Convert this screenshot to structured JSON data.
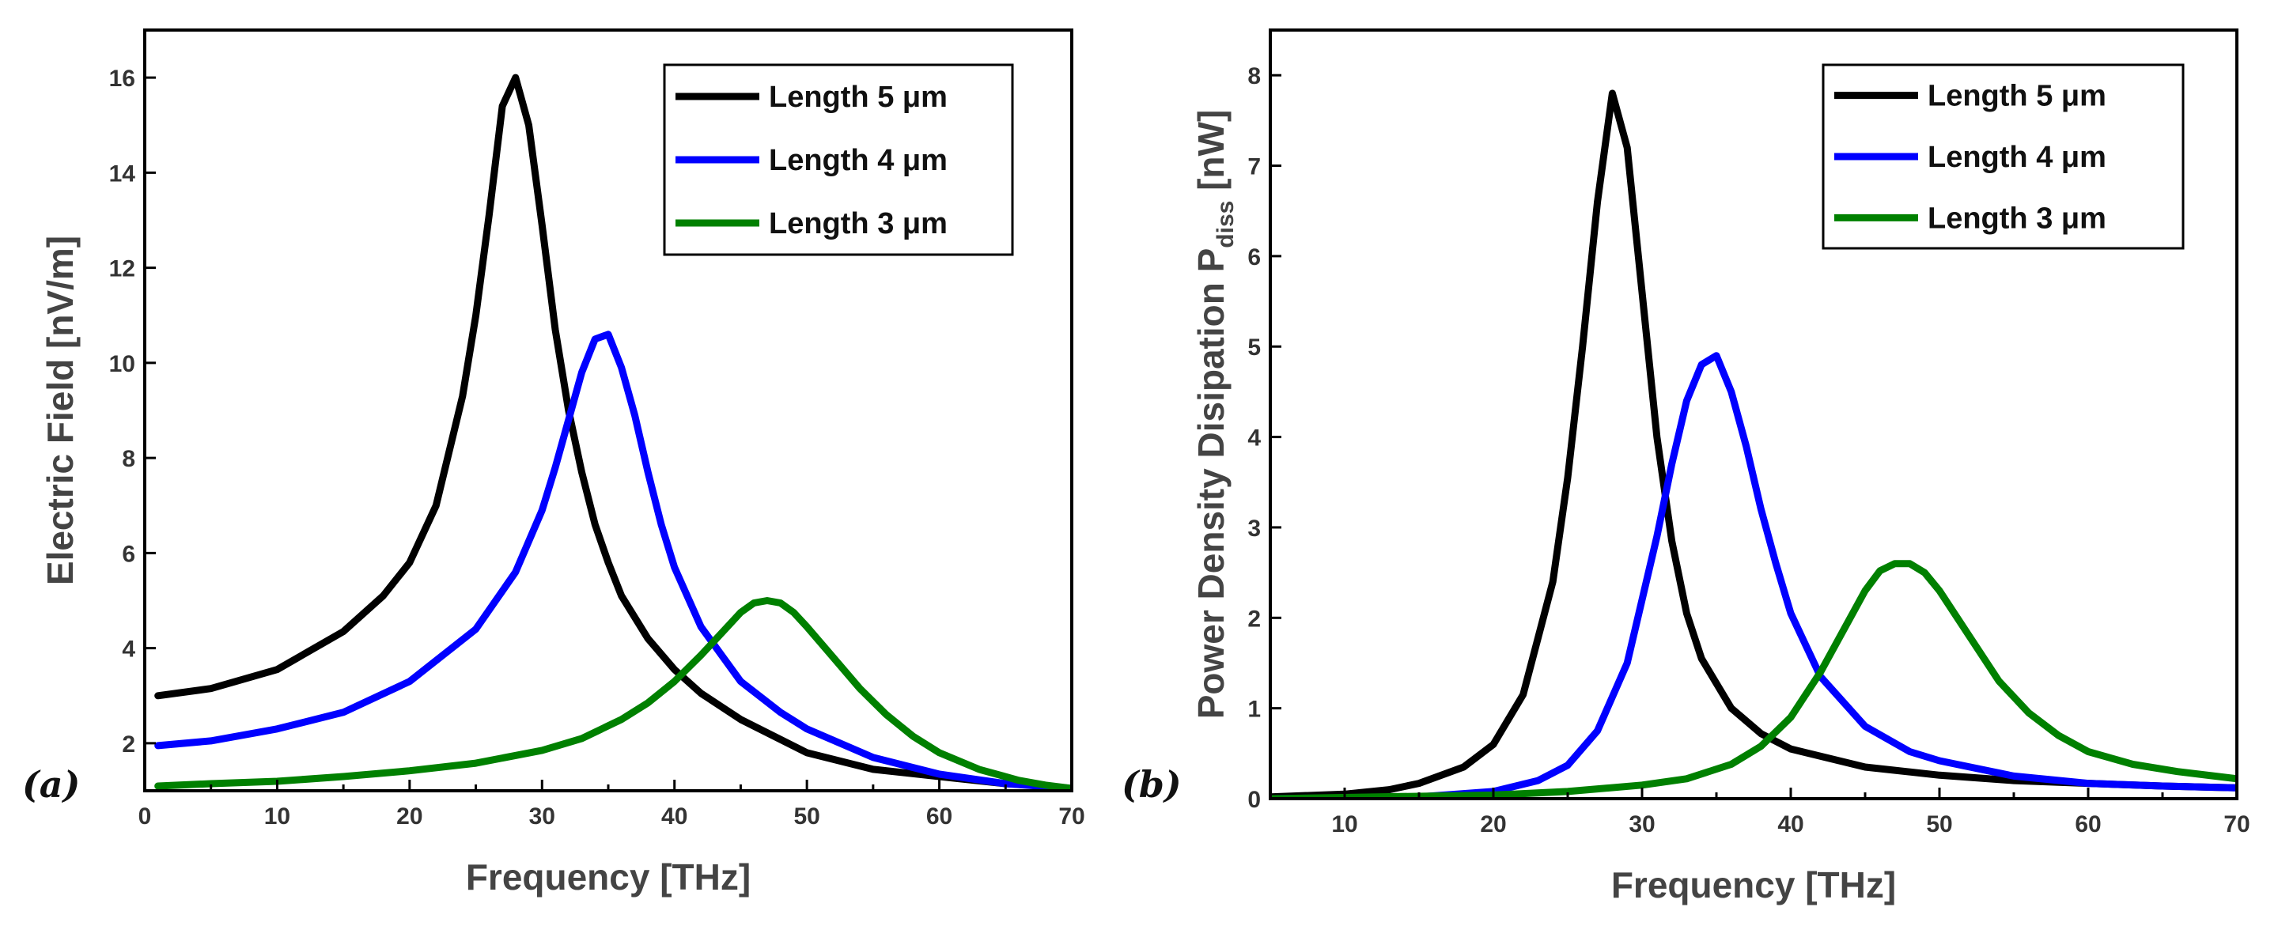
{
  "chart_data": [
    {
      "type": "line",
      "panel_label": "(a)",
      "xlabel": "Frequency [THz]",
      "ylabel": "Electric Field [nV/m]",
      "xlim": [
        0,
        70
      ],
      "ylim": [
        1,
        17
      ],
      "xticks": [
        0,
        10,
        20,
        30,
        40,
        50,
        60,
        70
      ],
      "yticks": [
        2,
        4,
        6,
        8,
        10,
        12,
        14,
        16
      ],
      "legend": "top-right",
      "series": [
        {
          "name": "Length 5 μm",
          "color": "#000000",
          "x": [
            1,
            5,
            10,
            15,
            18,
            20,
            22,
            24,
            25,
            26,
            27,
            28,
            29,
            30,
            31,
            32,
            33,
            34,
            35,
            36,
            38,
            40,
            42,
            45,
            50,
            55,
            60,
            65,
            68,
            70
          ],
          "y": [
            3.0,
            3.15,
            3.55,
            4.35,
            5.1,
            5.8,
            7.0,
            9.3,
            11.0,
            13.1,
            15.4,
            16.0,
            15.0,
            12.9,
            10.7,
            9.0,
            7.7,
            6.6,
            5.8,
            5.1,
            4.2,
            3.55,
            3.05,
            2.5,
            1.8,
            1.45,
            1.3,
            1.15,
            1.1,
            1.05
          ]
        },
        {
          "name": "Length 4 μm",
          "color": "#0000ff",
          "x": [
            1,
            5,
            10,
            15,
            20,
            25,
            28,
            30,
            31,
            32,
            33,
            34,
            35,
            36,
            37,
            38,
            39,
            40,
            42,
            45,
            48,
            50,
            55,
            60,
            65,
            70
          ],
          "y": [
            1.95,
            2.05,
            2.3,
            2.65,
            3.3,
            4.4,
            5.6,
            6.9,
            7.8,
            8.8,
            9.8,
            10.5,
            10.6,
            9.9,
            8.9,
            7.7,
            6.6,
            5.7,
            4.45,
            3.3,
            2.65,
            2.3,
            1.7,
            1.35,
            1.15,
            1.05
          ]
        },
        {
          "name": "Length 3 μm",
          "color": "#008000",
          "x": [
            1,
            5,
            10,
            15,
            20,
            25,
            30,
            33,
            36,
            38,
            40,
            42,
            44,
            45,
            46,
            47,
            48,
            49,
            50,
            52,
            54,
            56,
            58,
            60,
            63,
            66,
            68,
            70
          ],
          "y": [
            1.1,
            1.15,
            1.2,
            1.3,
            1.42,
            1.58,
            1.85,
            2.1,
            2.5,
            2.85,
            3.3,
            3.85,
            4.45,
            4.75,
            4.95,
            5.0,
            4.95,
            4.75,
            4.45,
            3.8,
            3.15,
            2.6,
            2.15,
            1.8,
            1.45,
            1.22,
            1.12,
            1.05
          ]
        }
      ]
    },
    {
      "type": "line",
      "panel_label": "(b)",
      "xlabel": "Frequency [THz]",
      "ylabel": "Power Density Disipation  P",
      "ylabel_sub": "diss",
      "ylabel_unit": " [nW]",
      "xlim": [
        5,
        70
      ],
      "ylim": [
        0,
        8.5
      ],
      "xticks": [
        10,
        20,
        30,
        40,
        50,
        60,
        70
      ],
      "yticks": [
        0,
        1,
        2,
        3,
        4,
        5,
        6,
        7,
        8
      ],
      "legend": "top-right",
      "series": [
        {
          "name": "Length 5 μm",
          "color": "#000000",
          "x": [
            5,
            10,
            13,
            15,
            18,
            20,
            22,
            24,
            25,
            26,
            27,
            28,
            29,
            30,
            31,
            32,
            33,
            34,
            36,
            38,
            40,
            45,
            50,
            55,
            60,
            65,
            70
          ],
          "y": [
            0.02,
            0.05,
            0.1,
            0.17,
            0.35,
            0.6,
            1.15,
            2.4,
            3.55,
            5.0,
            6.6,
            7.8,
            7.2,
            5.6,
            4.0,
            2.85,
            2.05,
            1.55,
            1.0,
            0.72,
            0.55,
            0.35,
            0.26,
            0.2,
            0.17,
            0.14,
            0.12
          ]
        },
        {
          "name": "Length 4 μm",
          "color": "#0000ff",
          "x": [
            5,
            15,
            20,
            23,
            25,
            27,
            29,
            31,
            32,
            33,
            34,
            35,
            36,
            37,
            38,
            39,
            40,
            42,
            45,
            48,
            50,
            55,
            60,
            65,
            70
          ],
          "y": [
            0.0,
            0.02,
            0.08,
            0.2,
            0.37,
            0.75,
            1.5,
            2.9,
            3.7,
            4.4,
            4.8,
            4.9,
            4.5,
            3.9,
            3.2,
            2.6,
            2.05,
            1.35,
            0.8,
            0.52,
            0.42,
            0.25,
            0.17,
            0.14,
            0.12
          ]
        },
        {
          "name": "Length 3 μm",
          "color": "#008000",
          "x": [
            5,
            20,
            25,
            30,
            33,
            36,
            38,
            40,
            42,
            44,
            45,
            46,
            47,
            48,
            49,
            50,
            52,
            54,
            56,
            58,
            60,
            63,
            66,
            70
          ],
          "y": [
            0.0,
            0.04,
            0.08,
            0.15,
            0.22,
            0.38,
            0.58,
            0.9,
            1.4,
            2.0,
            2.3,
            2.52,
            2.6,
            2.6,
            2.5,
            2.3,
            1.8,
            1.3,
            0.95,
            0.7,
            0.52,
            0.38,
            0.3,
            0.22
          ]
        }
      ]
    }
  ]
}
